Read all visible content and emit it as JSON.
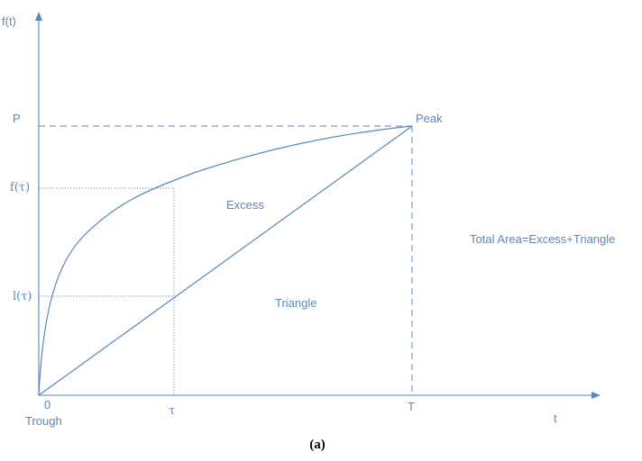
{
  "labels": {
    "y_axis": "f(t)",
    "x_axis": "t",
    "peak_value": "P",
    "f_tau": "f(τ)",
    "l_tau": "l(τ)",
    "origin": "0",
    "trough": "Trough",
    "tau": "τ",
    "end_time": "T",
    "peak": "Peak",
    "excess": "Excess",
    "triangle": "Triangle",
    "total_area": "Total Area=Excess+Triangle",
    "caption": "(a)"
  },
  "colors": {
    "line": "#5b86bb",
    "caption": "#000000"
  }
}
